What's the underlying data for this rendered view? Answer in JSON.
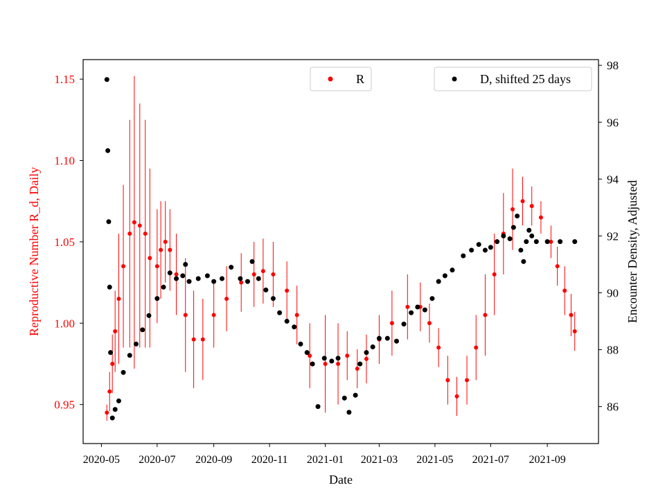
{
  "chart_data": {
    "type": "scatter",
    "xlabel": "Date",
    "ylabel_left": "Reproductive Number R_d, Daily",
    "ylabel_right": "Encounter Density, Adjusted",
    "x_range": [
      "2020-04-11",
      "2021-10-27"
    ],
    "ylim_left": [
      0.926,
      1.162
    ],
    "ylim_right": [
      84.7,
      98.2
    ],
    "x_ticks": [
      "2020-05",
      "2020-07",
      "2020-09",
      "2020-11",
      "2021-01",
      "2021-03",
      "2021-05",
      "2021-07",
      "2021-09"
    ],
    "y_ticks_left": [
      "0.95",
      "1.00",
      "1.05",
      "1.10",
      "1.15"
    ],
    "y_ticks_right": [
      "86",
      "88",
      "90",
      "92",
      "94",
      "96",
      "98"
    ],
    "colors": {
      "R": "#ff0000",
      "D": "#000000",
      "left_axis": "#ff0000"
    },
    "legend": {
      "R_label": "R",
      "D_label": "D, shifted 25 days",
      "placement": "top-center and top-right"
    },
    "series": [
      {
        "name": "R",
        "axis": "left",
        "color": "#ff0000",
        "marker": "dot with vertical error bar",
        "points": [
          [
            "2020-05-07",
            0.945,
            0.005
          ],
          [
            "2020-05-10",
            0.958,
            0.012
          ],
          [
            "2020-05-13",
            0.975,
            0.018
          ],
          [
            "2020-05-16",
            0.995,
            0.025
          ],
          [
            "2020-05-20",
            1.015,
            0.04
          ],
          [
            "2020-05-25",
            1.035,
            0.05
          ],
          [
            "2020-06-01",
            1.055,
            0.07
          ],
          [
            "2020-06-06",
            1.062,
            0.09
          ],
          [
            "2020-06-12",
            1.06,
            0.075
          ],
          [
            "2020-06-18",
            1.055,
            0.07
          ],
          [
            "2020-06-23",
            1.04,
            0.055
          ],
          [
            "2020-07-01",
            1.035,
            0.035
          ],
          [
            "2020-07-05",
            1.045,
            0.03
          ],
          [
            "2020-07-10",
            1.05,
            0.025
          ],
          [
            "2020-07-15",
            1.045,
            0.025
          ],
          [
            "2020-07-22",
            1.03,
            0.025
          ],
          [
            "2020-08-01",
            1.005,
            0.035
          ],
          [
            "2020-08-10",
            0.99,
            0.03
          ],
          [
            "2020-08-20",
            0.99,
            0.025
          ],
          [
            "2020-09-01",
            1.005,
            0.02
          ],
          [
            "2020-09-15",
            1.015,
            0.02
          ],
          [
            "2020-10-01",
            1.025,
            0.018
          ],
          [
            "2020-10-15",
            1.03,
            0.02
          ],
          [
            "2020-10-25",
            1.032,
            0.02
          ],
          [
            "2020-11-05",
            1.03,
            0.02
          ],
          [
            "2020-11-20",
            1.02,
            0.018
          ],
          [
            "2020-12-01",
            1.005,
            0.018
          ],
          [
            "2020-12-15",
            0.98,
            0.02
          ],
          [
            "2021-01-01",
            0.975,
            0.03
          ],
          [
            "2021-01-15",
            0.975,
            0.025
          ],
          [
            "2021-01-25",
            0.98,
            0.015
          ],
          [
            "2021-02-05",
            0.972,
            0.012
          ],
          [
            "2021-02-15",
            0.978,
            0.015
          ],
          [
            "2021-03-01",
            0.99,
            0.015
          ],
          [
            "2021-03-15",
            1.0,
            0.02
          ],
          [
            "2021-04-01",
            1.01,
            0.02
          ],
          [
            "2021-04-15",
            1.01,
            0.015
          ],
          [
            "2021-04-25",
            1.0,
            0.012
          ],
          [
            "2021-05-05",
            0.985,
            0.012
          ],
          [
            "2021-05-15",
            0.965,
            0.015
          ],
          [
            "2021-05-25",
            0.955,
            0.012
          ],
          [
            "2021-06-05",
            0.965,
            0.015
          ],
          [
            "2021-06-15",
            0.985,
            0.02
          ],
          [
            "2021-06-25",
            1.005,
            0.025
          ],
          [
            "2021-07-05",
            1.03,
            0.025
          ],
          [
            "2021-07-15",
            1.055,
            0.025
          ],
          [
            "2021-07-25",
            1.07,
            0.025
          ],
          [
            "2021-08-05",
            1.075,
            0.015
          ],
          [
            "2021-08-15",
            1.072,
            0.012
          ],
          [
            "2021-08-25",
            1.065,
            0.01
          ],
          [
            "2021-09-05",
            1.05,
            0.01
          ],
          [
            "2021-09-12",
            1.035,
            0.012
          ],
          [
            "2021-09-20",
            1.02,
            0.015
          ],
          [
            "2021-09-27",
            1.005,
            0.013
          ],
          [
            "2021-10-01",
            0.995,
            0.012
          ]
        ]
      },
      {
        "name": "D, shifted 25 days",
        "axis": "right",
        "color": "#000000",
        "marker": "dot",
        "points": [
          [
            "2020-05-07",
            97.5
          ],
          [
            "2020-05-08",
            95.0
          ],
          [
            "2020-05-09",
            92.5
          ],
          [
            "2020-05-10",
            90.2
          ],
          [
            "2020-05-11",
            87.9
          ],
          [
            "2020-05-13",
            85.6
          ],
          [
            "2020-05-16",
            85.9
          ],
          [
            "2020-05-20",
            86.2
          ],
          [
            "2020-05-25",
            87.2
          ],
          [
            "2020-06-01",
            87.8
          ],
          [
            "2020-06-08",
            88.2
          ],
          [
            "2020-06-15",
            88.7
          ],
          [
            "2020-06-22",
            89.2
          ],
          [
            "2020-07-01",
            89.8
          ],
          [
            "2020-07-08",
            90.2
          ],
          [
            "2020-07-15",
            90.7
          ],
          [
            "2020-07-22",
            90.5
          ],
          [
            "2020-07-29",
            90.6
          ],
          [
            "2020-08-01",
            91.0
          ],
          [
            "2020-08-05",
            90.4
          ],
          [
            "2020-08-15",
            90.5
          ],
          [
            "2020-08-25",
            90.6
          ],
          [
            "2020-09-01",
            90.4
          ],
          [
            "2020-09-10",
            90.5
          ],
          [
            "2020-09-20",
            90.9
          ],
          [
            "2020-09-30",
            90.5
          ],
          [
            "2020-10-08",
            90.4
          ],
          [
            "2020-10-13",
            91.1
          ],
          [
            "2020-10-20",
            90.5
          ],
          [
            "2020-10-28",
            90.1
          ],
          [
            "2020-11-05",
            89.8
          ],
          [
            "2020-11-12",
            89.3
          ],
          [
            "2020-11-20",
            89.0
          ],
          [
            "2020-11-28",
            88.8
          ],
          [
            "2020-12-05",
            88.2
          ],
          [
            "2020-12-12",
            87.9
          ],
          [
            "2020-12-18",
            87.5
          ],
          [
            "2020-12-24",
            86.0
          ],
          [
            "2020-12-31",
            87.7
          ],
          [
            "2021-01-08",
            87.6
          ],
          [
            "2021-01-15",
            87.7
          ],
          [
            "2021-01-22",
            86.3
          ],
          [
            "2021-01-27",
            85.8
          ],
          [
            "2021-02-03",
            86.4
          ],
          [
            "2021-02-08",
            87.5
          ],
          [
            "2021-02-15",
            87.9
          ],
          [
            "2021-02-22",
            88.1
          ],
          [
            "2021-03-01",
            88.4
          ],
          [
            "2021-03-10",
            88.4
          ],
          [
            "2021-03-20",
            88.3
          ],
          [
            "2021-03-28",
            88.9
          ],
          [
            "2021-04-05",
            89.3
          ],
          [
            "2021-04-12",
            89.5
          ],
          [
            "2021-04-20",
            89.4
          ],
          [
            "2021-04-28",
            89.8
          ],
          [
            "2021-05-05",
            90.4
          ],
          [
            "2021-05-12",
            90.6
          ],
          [
            "2021-05-20",
            90.8
          ],
          [
            "2021-06-01",
            91.3
          ],
          [
            "2021-06-10",
            91.5
          ],
          [
            "2021-06-18",
            91.7
          ],
          [
            "2021-06-25",
            91.5
          ],
          [
            "2021-07-01",
            91.6
          ],
          [
            "2021-07-08",
            91.8
          ],
          [
            "2021-07-15",
            92.0
          ],
          [
            "2021-07-22",
            91.9
          ],
          [
            "2021-07-26",
            92.3
          ],
          [
            "2021-07-30",
            92.7
          ],
          [
            "2021-08-03",
            91.5
          ],
          [
            "2021-08-06",
            91.1
          ],
          [
            "2021-08-09",
            91.8
          ],
          [
            "2021-08-12",
            92.2
          ],
          [
            "2021-08-15",
            92.0
          ],
          [
            "2021-08-20",
            91.8
          ],
          [
            "2021-09-01",
            91.8
          ],
          [
            "2021-09-15",
            91.8
          ],
          [
            "2021-10-01",
            91.8
          ]
        ]
      }
    ]
  }
}
